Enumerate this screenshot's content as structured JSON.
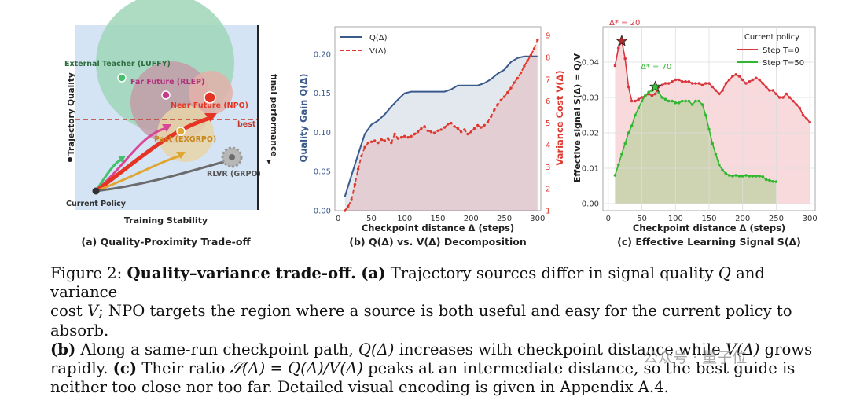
{
  "panel_a": {
    "title": "(a) Quality-Proximity Trade-off",
    "y_label": "Trajectory Quality",
    "x_label": "Training Stability",
    "right_label": "final performance",
    "best_label": "best",
    "labels": {
      "external": "External Teacher (LUFFY)",
      "far": "Far Future (RLEP)",
      "near": "Near Future (NPO)",
      "past": "Past (EXGRPO)",
      "rlvr": "RLVR (GRPO)",
      "current": "Current Policy"
    }
  },
  "panel_b": {
    "title": "(b) Q(Δ) vs. V(Δ) Decomposition",
    "y_label_left": "Quality Gain Q(Δ)",
    "y_label_right": "Variance Cost V(Δ)",
    "x_label": "Checkpoint distance  Δ (steps)",
    "legend": [
      "Q(Δ)",
      "V(Δ)"
    ],
    "left_ticks": [
      "0.00",
      "0.05",
      "0.10",
      "0.15",
      "0.20"
    ],
    "right_ticks": [
      "1",
      "2",
      "3",
      "4",
      "5",
      "6",
      "7",
      "8",
      "9"
    ],
    "x_ticks": [
      "0",
      "50",
      "100",
      "150",
      "200",
      "250",
      "300"
    ]
  },
  "panel_c": {
    "title": "(c) Effective Learning Signal S(Δ)",
    "y_label": "Effective signal S(Δ) = Q/V",
    "x_label": "Checkpoint distance  Δ (steps)",
    "legend_title": "Current policy",
    "legend": [
      "Step T=0",
      "Step T=50"
    ],
    "annotations": [
      "Δ* = 20",
      "Δ* = 70"
    ],
    "y_ticks": [
      "0.00",
      "0.01",
      "0.02",
      "0.03",
      "0.04"
    ],
    "x_ticks": [
      "0",
      "50",
      "100",
      "150",
      "200",
      "250",
      "300"
    ]
  },
  "chart_data": [
    {
      "type": "line",
      "title": "(b) Q(Δ) vs. V(Δ) Decomposition",
      "xlabel": "Checkpoint distance Δ (steps)",
      "xlim": [
        -5,
        305
      ],
      "series": [
        {
          "name": "Q(Δ)",
          "axis": "left",
          "color": "#3a5a8c",
          "ylim": [
            0,
            0.235
          ],
          "x": [
            10,
            20,
            30,
            40,
            50,
            60,
            70,
            80,
            90,
            100,
            110,
            120,
            130,
            140,
            150,
            160,
            170,
            180,
            190,
            200,
            210,
            220,
            230,
            240,
            250,
            260,
            270,
            280,
            290,
            300
          ],
          "y": [
            0.018,
            0.045,
            0.072,
            0.098,
            0.11,
            0.115,
            0.123,
            0.133,
            0.142,
            0.15,
            0.152,
            0.152,
            0.152,
            0.152,
            0.152,
            0.152,
            0.155,
            0.16,
            0.16,
            0.16,
            0.16,
            0.163,
            0.168,
            0.175,
            0.18,
            0.19,
            0.195,
            0.197,
            0.197,
            0.197
          ]
        },
        {
          "name": "V(Δ)",
          "axis": "right",
          "color": "#e0382e",
          "ylim": [
            1,
            9.4
          ],
          "x": [
            10,
            15,
            20,
            25,
            30,
            35,
            40,
            45,
            50,
            55,
            60,
            65,
            70,
            75,
            80,
            85,
            90,
            95,
            100,
            105,
            110,
            115,
            120,
            125,
            130,
            135,
            140,
            145,
            150,
            155,
            160,
            165,
            170,
            175,
            180,
            185,
            190,
            195,
            200,
            205,
            210,
            215,
            220,
            225,
            230,
            235,
            240,
            245,
            250,
            255,
            260,
            265,
            270,
            275,
            280,
            285,
            290,
            295,
            300
          ],
          "y": [
            1.0,
            1.2,
            1.5,
            2.2,
            2.9,
            3.5,
            3.9,
            4.1,
            4.15,
            4.2,
            4.1,
            4.25,
            4.2,
            4.3,
            4.1,
            4.5,
            4.3,
            4.35,
            4.4,
            4.35,
            4.4,
            4.5,
            4.6,
            4.75,
            4.85,
            4.65,
            4.6,
            4.55,
            4.65,
            4.7,
            4.8,
            4.95,
            5.0,
            4.85,
            4.75,
            4.6,
            4.7,
            4.5,
            4.6,
            4.75,
            4.9,
            4.8,
            4.9,
            5.05,
            5.3,
            5.6,
            5.85,
            6.05,
            6.2,
            6.4,
            6.6,
            6.85,
            7.05,
            7.3,
            7.6,
            7.85,
            8.1,
            8.4,
            8.8
          ]
        }
      ]
    },
    {
      "type": "line",
      "title": "(c) Effective Learning Signal S(Δ)",
      "xlabel": "Checkpoint distance Δ (steps)",
      "ylabel": "Effective signal S(Δ) = Q/V",
      "xlim": [
        -8,
        308
      ],
      "ylim": [
        -0.002,
        0.05
      ],
      "series": [
        {
          "name": "Step T=0",
          "color": "#d9363e",
          "x": [
            10,
            15,
            20,
            25,
            30,
            35,
            40,
            45,
            50,
            55,
            60,
            65,
            70,
            75,
            80,
            85,
            90,
            95,
            100,
            105,
            110,
            115,
            120,
            125,
            130,
            135,
            140,
            145,
            150,
            155,
            160,
            165,
            170,
            175,
            180,
            185,
            190,
            195,
            200,
            205,
            210,
            215,
            220,
            225,
            230,
            235,
            240,
            245,
            250,
            255,
            260,
            265,
            270,
            275,
            280,
            285,
            290,
            295,
            300
          ],
          "y": [
            0.039,
            0.044,
            0.046,
            0.041,
            0.033,
            0.029,
            0.029,
            0.0295,
            0.03,
            0.0305,
            0.031,
            0.0305,
            0.031,
            0.033,
            0.0335,
            0.034,
            0.034,
            0.0345,
            0.035,
            0.035,
            0.0345,
            0.0345,
            0.0345,
            0.034,
            0.034,
            0.034,
            0.0335,
            0.034,
            0.034,
            0.033,
            0.032,
            0.031,
            0.032,
            0.034,
            0.035,
            0.036,
            0.0365,
            0.036,
            0.035,
            0.034,
            0.0345,
            0.035,
            0.0355,
            0.035,
            0.034,
            0.033,
            0.032,
            0.032,
            0.031,
            0.03,
            0.03,
            0.031,
            0.03,
            0.029,
            0.028,
            0.027,
            0.025,
            0.024,
            0.023
          ]
        },
        {
          "name": "Step T=50",
          "color": "#2fb82f",
          "x": [
            10,
            15,
            20,
            25,
            30,
            35,
            40,
            45,
            50,
            55,
            60,
            65,
            70,
            75,
            80,
            85,
            90,
            95,
            100,
            105,
            110,
            115,
            120,
            125,
            130,
            135,
            140,
            145,
            150,
            155,
            160,
            165,
            170,
            175,
            180,
            185,
            190,
            195,
            200,
            205,
            210,
            215,
            220,
            225,
            230,
            235,
            240,
            245,
            250
          ],
          "y": [
            0.008,
            0.011,
            0.014,
            0.017,
            0.02,
            0.022,
            0.025,
            0.027,
            0.029,
            0.0305,
            0.0315,
            0.032,
            0.033,
            0.0315,
            0.03,
            0.0295,
            0.029,
            0.029,
            0.0285,
            0.0285,
            0.029,
            0.029,
            0.029,
            0.028,
            0.029,
            0.029,
            0.028,
            0.025,
            0.021,
            0.017,
            0.014,
            0.011,
            0.0095,
            0.0085,
            0.008,
            0.0078,
            0.008,
            0.0078,
            0.0078,
            0.008,
            0.0078,
            0.0078,
            0.0078,
            0.0078,
            0.0076,
            0.0068,
            0.0066,
            0.0063,
            0.0062
          ]
        }
      ]
    }
  ],
  "caption": {
    "fig": "Figure 2:",
    "bold1": "Quality–variance trade-off.",
    "a_tag": "(a)",
    "t1": "Trajectory sources differ in signal quality",
    "q": "Q",
    "t2": "and variance",
    "t3": "cost",
    "v": "V",
    "t4": "; NPO targets the region where a source is both useful and easy for the current policy to absorb.",
    "b_tag": "(b)",
    "t5": "Along a same-run checkpoint path,",
    "qd": "Q(Δ)",
    "t6": "increases with checkpoint distance while",
    "vd": "V(Δ)",
    "t7": "grows",
    "t8": "rapidly.",
    "c_tag": "(c)",
    "t9": "Their ratio",
    "ratio": "𝒮(Δ) = Q(Δ)/V(Δ)",
    "t10": "peaks at an intermediate distance, so the best guide is",
    "t11": "neither too close nor too far. Detailed visual encoding is given in Appendix A.4."
  },
  "watermark": "公众号 · 量子位"
}
